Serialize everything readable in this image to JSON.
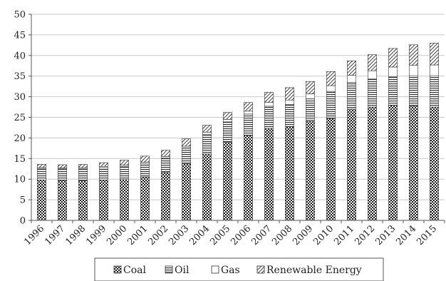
{
  "chart_data": {
    "type": "bar",
    "stacked": true,
    "title": "",
    "xlabel": "",
    "ylabel": "",
    "ylim": [
      0,
      50
    ],
    "yticks": [
      0,
      5,
      10,
      15,
      20,
      25,
      30,
      35,
      40,
      45,
      50
    ],
    "grid": "horizontal",
    "legend_position": "bottom",
    "categories": [
      "1996",
      "1997",
      "1998",
      "1999",
      "2000",
      "2001",
      "2002",
      "2003",
      "2004",
      "2005",
      "2006",
      "2007",
      "2008",
      "2009",
      "2010",
      "2011",
      "2012",
      "2013",
      "2014",
      "2015"
    ],
    "series": [
      {
        "name": "Coal",
        "pattern": "checker",
        "values": [
          9.8,
          9.7,
          9.6,
          9.8,
          9.9,
          10.5,
          11.6,
          13.7,
          16.1,
          19.0,
          20.6,
          22.3,
          22.7,
          24.0,
          24.7,
          27.0,
          27.5,
          27.9,
          27.7,
          27.5
        ]
      },
      {
        "name": "Oil",
        "pattern": "horizontal-lines",
        "values": [
          2.8,
          2.8,
          2.9,
          3.0,
          3.2,
          3.3,
          3.5,
          3.9,
          4.8,
          4.9,
          5.2,
          5.4,
          5.4,
          5.5,
          6.6,
          6.5,
          6.8,
          7.0,
          7.4,
          7.6
        ]
      },
      {
        "name": "Gas",
        "pattern": "white",
        "values": [
          0.2,
          0.2,
          0.3,
          0.3,
          0.3,
          0.3,
          0.4,
          0.4,
          0.5,
          0.6,
          0.7,
          0.9,
          1.1,
          1.2,
          1.4,
          1.7,
          2.0,
          2.3,
          2.5,
          2.6
        ]
      },
      {
        "name": "Renewable Energy",
        "pattern": "diagonal-lines",
        "values": [
          0.8,
          0.8,
          0.8,
          0.9,
          1.2,
          1.5,
          1.5,
          1.8,
          1.7,
          1.7,
          2.1,
          2.5,
          3.0,
          3.0,
          3.4,
          3.5,
          3.9,
          4.5,
          5.0,
          5.3
        ]
      }
    ]
  }
}
